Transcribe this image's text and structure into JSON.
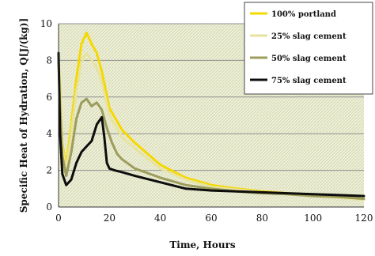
{
  "chart_data": {
    "type": "line",
    "title": "",
    "xlabel": "Time, Hours",
    "ylabel": "Specific Heat of Hydration, Q[J/(kg)]",
    "xlim": [
      0,
      120
    ],
    "ylim": [
      0,
      10
    ],
    "x_ticks": [
      0,
      20,
      40,
      60,
      80,
      100,
      120
    ],
    "y_ticks": [
      0,
      2,
      4,
      6,
      8,
      10
    ],
    "grid": true,
    "legend_position": "top-right",
    "series": [
      {
        "name": "100% portland",
        "color": "#f5d800",
        "x": [
          0,
          0.6,
          1.5,
          3,
          5,
          7,
          9,
          11,
          13,
          15,
          17,
          20,
          25,
          30,
          40,
          50,
          60,
          70,
          80,
          90,
          100,
          110,
          120
        ],
        "y": [
          8.0,
          6.5,
          3.4,
          2.3,
          4.5,
          7.0,
          8.9,
          9.5,
          8.9,
          8.4,
          7.4,
          5.4,
          4.2,
          3.5,
          2.3,
          1.6,
          1.2,
          1.0,
          0.85,
          0.75,
          0.65,
          0.55,
          0.45
        ]
      },
      {
        "name": "25% slag cement",
        "color": "#e7e39f",
        "x": [
          0,
          0.6,
          1.5,
          3,
          5,
          7,
          9,
          11,
          13,
          15,
          17,
          20,
          25,
          30,
          40,
          50,
          60,
          70,
          80,
          90,
          100,
          110,
          120
        ],
        "y": [
          8.0,
          6.2,
          3.2,
          2.0,
          4.0,
          6.3,
          7.9,
          8.4,
          8.0,
          7.6,
          6.8,
          5.0,
          3.8,
          3.2,
          2.1,
          1.5,
          1.1,
          0.95,
          0.8,
          0.7,
          0.6,
          0.5,
          0.4
        ]
      },
      {
        "name": "50% slag cement",
        "color": "#9c9c5c",
        "x": [
          0,
          0.6,
          1.5,
          3,
          5,
          7,
          9,
          11,
          13,
          15,
          17,
          19,
          21,
          23,
          25,
          30,
          40,
          50,
          60,
          70,
          80,
          90,
          100,
          110,
          120
        ],
        "y": [
          8.0,
          5.5,
          2.8,
          1.7,
          3.0,
          4.8,
          5.7,
          5.9,
          5.5,
          5.7,
          5.3,
          4.3,
          3.5,
          2.9,
          2.6,
          2.1,
          1.6,
          1.2,
          1.0,
          0.85,
          0.75,
          0.7,
          0.6,
          0.55,
          0.45
        ]
      },
      {
        "name": "75% slag cement",
        "color": "#0d0d0d",
        "x": [
          0,
          0.6,
          1.5,
          3,
          5,
          7,
          9,
          11,
          13,
          15,
          17,
          18,
          19,
          20,
          22,
          25,
          30,
          40,
          50,
          60,
          70,
          80,
          90,
          100,
          110,
          120
        ],
        "y": [
          8.4,
          4.0,
          1.8,
          1.2,
          1.5,
          2.4,
          3.0,
          3.3,
          3.6,
          4.5,
          4.9,
          3.8,
          2.4,
          2.1,
          2.0,
          1.9,
          1.7,
          1.35,
          1.0,
          0.9,
          0.85,
          0.8,
          0.75,
          0.7,
          0.65,
          0.6
        ]
      }
    ]
  }
}
